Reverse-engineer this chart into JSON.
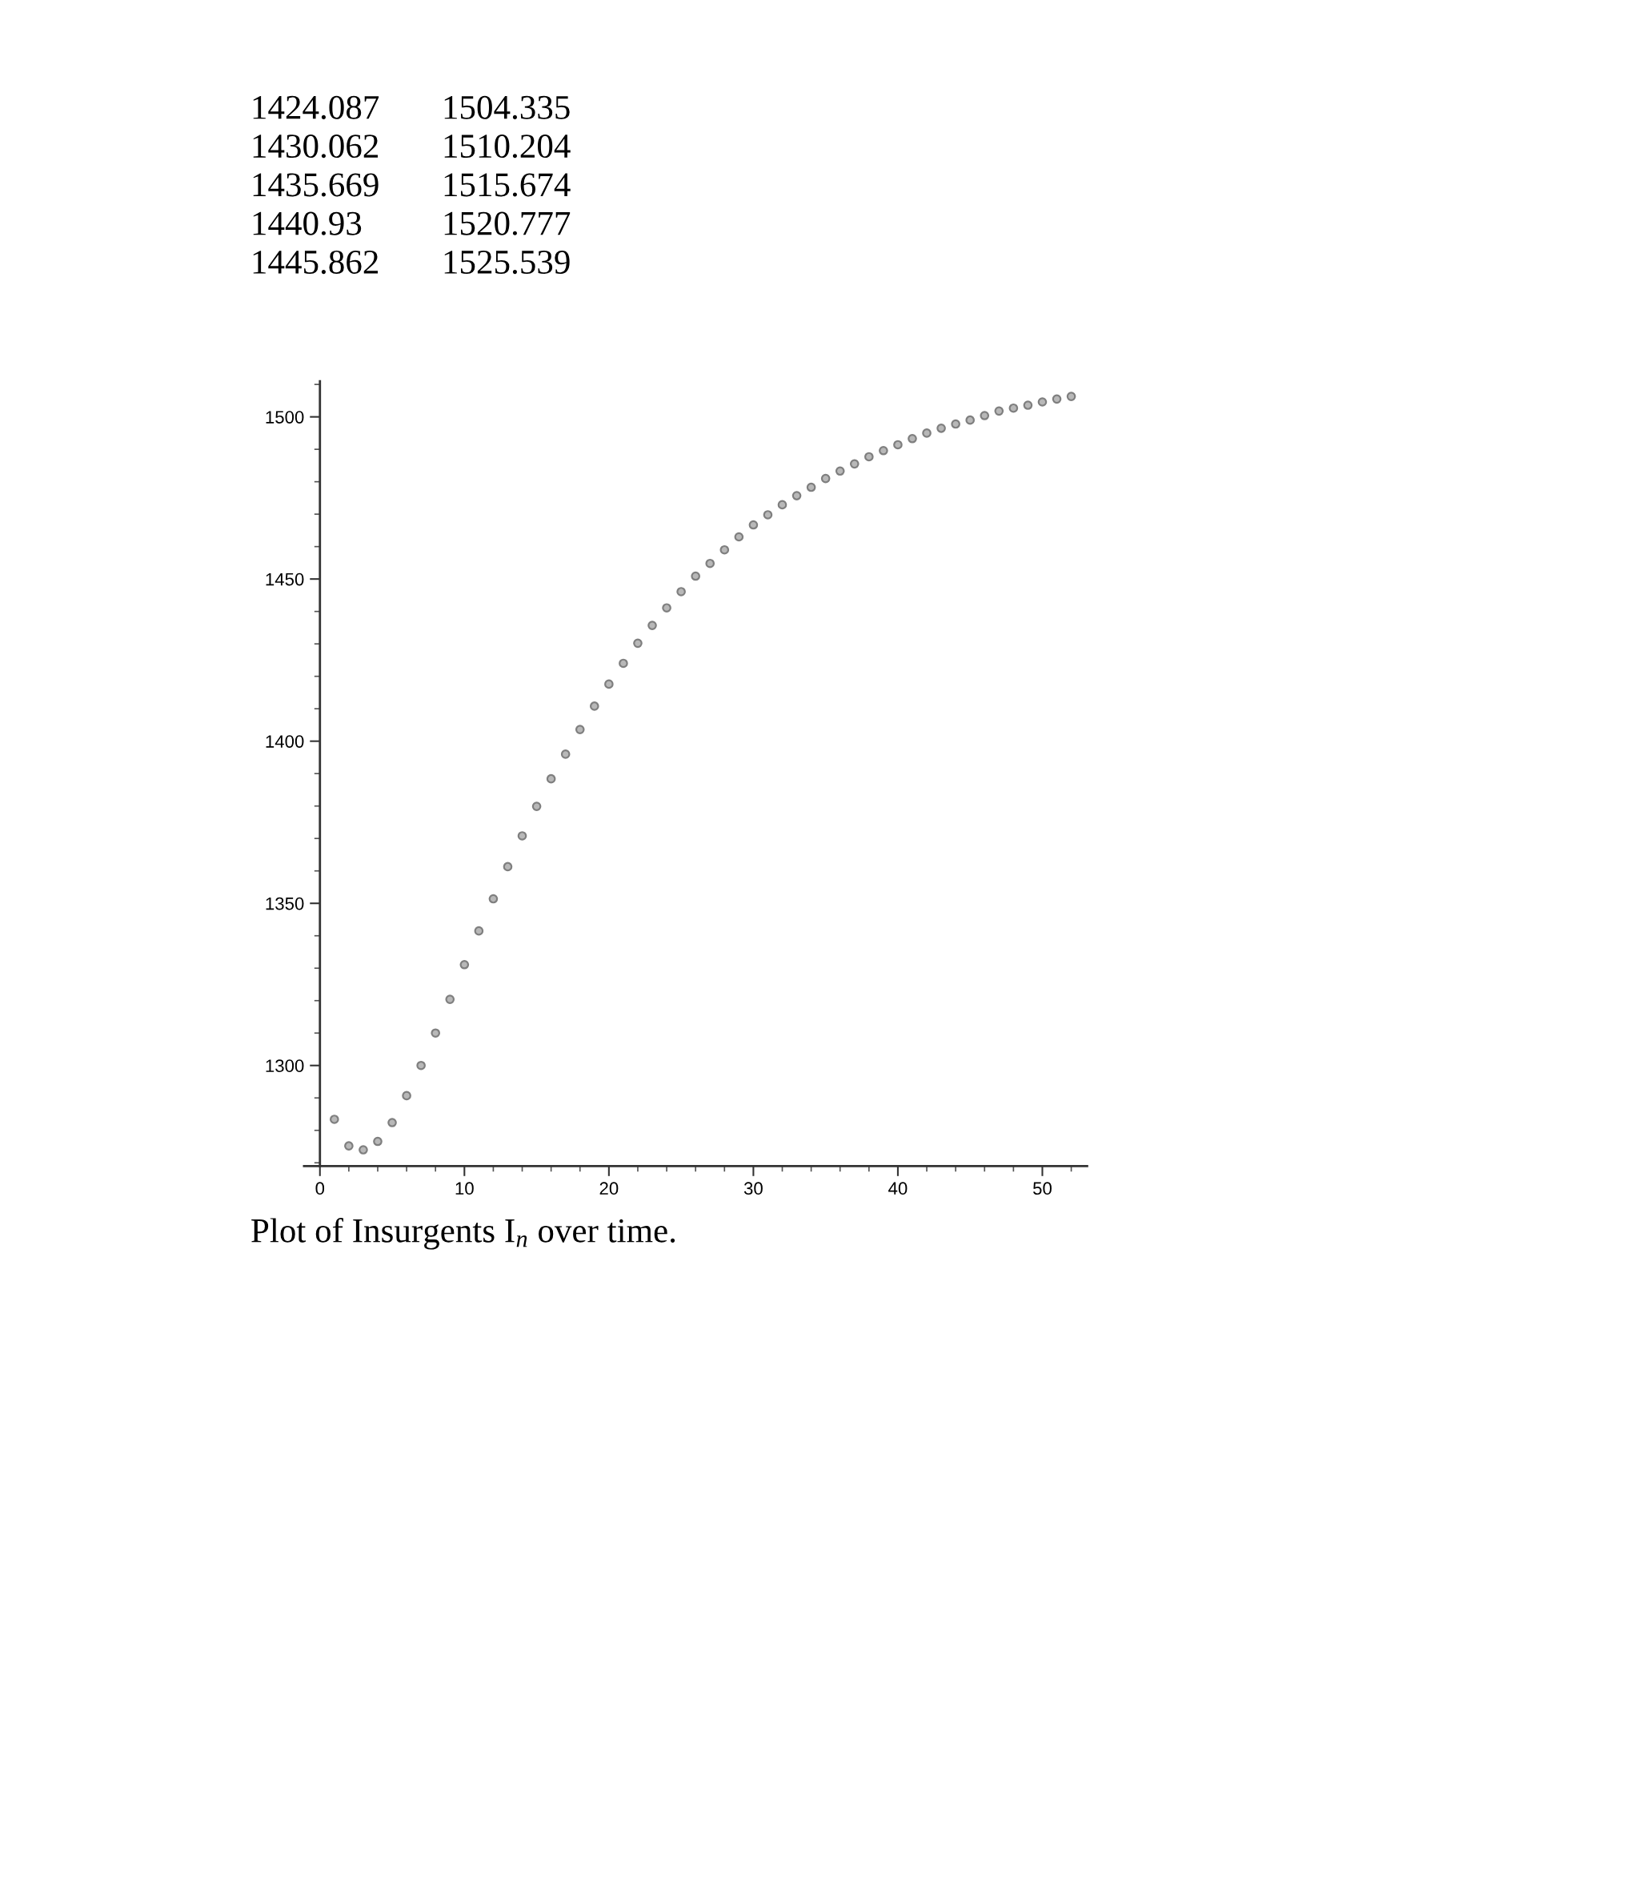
{
  "chart_data": {
    "type": "scatter",
    "x": [
      1,
      2,
      3,
      4,
      5,
      6,
      7,
      8,
      9,
      10,
      11,
      12,
      13,
      14,
      15,
      16,
      17,
      18,
      19,
      20,
      21,
      22,
      23,
      24,
      25,
      26,
      27,
      28,
      29,
      30,
      31,
      32,
      33,
      34,
      35,
      36,
      37,
      38,
      39,
      40,
      41,
      42,
      43,
      44,
      45,
      46,
      47,
      48,
      49,
      50,
      51,
      52
    ],
    "values": [
      1283.4,
      1275.2,
      1274.0,
      1276.6,
      1282.4,
      1290.7,
      1300.0,
      1310.0,
      1320.4,
      1331.1,
      1341.5,
      1351.4,
      1361.3,
      1370.8,
      1379.9,
      1388.4,
      1396.0,
      1403.6,
      1410.8,
      1417.6,
      1424.0,
      1430.2,
      1435.7,
      1441.1,
      1446.1,
      1450.9,
      1454.8,
      1459.0,
      1463.0,
      1466.7,
      1469.8,
      1472.9,
      1475.7,
      1478.3,
      1481.0,
      1483.3,
      1485.5,
      1487.7,
      1489.6,
      1491.4,
      1493.3,
      1495.0,
      1496.5,
      1497.8,
      1499.0,
      1500.4,
      1501.8,
      1502.7,
      1503.6,
      1504.6,
      1505.5,
      1506.3
    ],
    "color": "#7f7f7f",
    "marker": "circle",
    "xlim": [
      -1.1,
      53.1
    ],
    "ylim": [
      1269,
      1511
    ],
    "xticks": [
      0,
      {
        "value": 2,
        "label": null
      },
      {
        "value": 4,
        "label": null
      },
      {
        "value": 6,
        "label": null
      },
      {
        "value": 8,
        "label": null
      },
      10,
      {
        "value": 12,
        "label": null
      },
      {
        "value": 14,
        "label": null
      },
      {
        "value": 16,
        "label": null
      },
      {
        "value": 18,
        "label": null
      },
      20,
      {
        "value": 22,
        "label": null
      },
      {
        "value": 24,
        "label": null
      },
      {
        "value": 26,
        "label": null
      },
      {
        "value": 28,
        "label": null
      },
      30,
      {
        "value": 32,
        "label": null
      },
      {
        "value": 34,
        "label": null
      },
      {
        "value": 36,
        "label": null
      },
      {
        "value": 38,
        "label": null
      },
      40,
      {
        "value": 42,
        "label": null
      },
      {
        "value": 44,
        "label": null
      },
      {
        "value": 46,
        "label": null
      },
      {
        "value": 48,
        "label": null
      },
      50,
      {
        "value": 52,
        "label": null
      }
    ],
    "yticks": [
      {
        "value": 1270,
        "label": null
      },
      {
        "value": 1280,
        "label": null
      },
      {
        "value": 1290,
        "label": null
      },
      1300,
      {
        "value": 1310,
        "label": null
      },
      {
        "value": 1320,
        "label": null
      },
      {
        "value": 1330,
        "label": null
      },
      {
        "value": 1340,
        "label": null
      },
      1350,
      {
        "value": 1360,
        "label": null
      },
      {
        "value": 1370,
        "label": null
      },
      {
        "value": 1380,
        "label": null
      },
      {
        "value": 1390,
        "label": null
      },
      1400,
      {
        "value": 1410,
        "label": null
      },
      {
        "value": 1420,
        "label": null
      },
      {
        "value": 1430,
        "label": null
      },
      {
        "value": 1440,
        "label": null
      },
      1450,
      {
        "value": 1460,
        "label": null
      },
      {
        "value": 1470,
        "label": null
      },
      {
        "value": 1480,
        "label": null
      },
      {
        "value": 1490,
        "label": null
      },
      1500,
      {
        "value": 1510,
        "label": null
      }
    ],
    "annotations": [
      "1424.087",
      "1504.335",
      "1430.062",
      "1510.204",
      "1435.669",
      "1515.674",
      "1440.93",
      "1520.777",
      "1445.862",
      "1525.539",
      "Plot of Insurgents I$_{n}$ over time."
    ]
  }
}
